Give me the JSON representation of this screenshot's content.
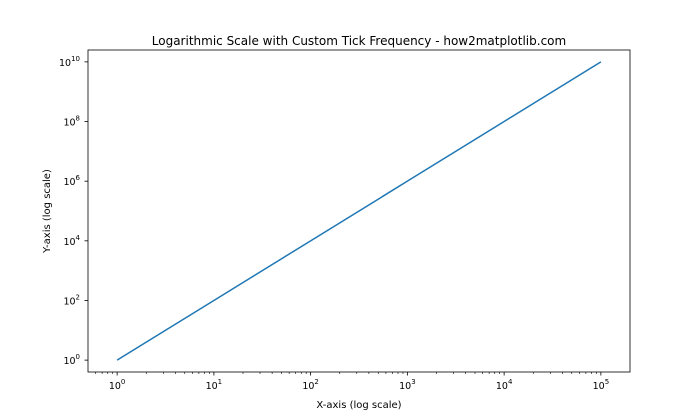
{
  "chart_data": {
    "type": "line",
    "title": "Logarithmic Scale with Custom Tick Frequency - how2matplotlib.com",
    "xlabel": "X-axis (log scale)",
    "ylabel": "Y-axis (log scale)",
    "xscale": "log",
    "yscale": "log",
    "xlim": [
      0.5,
      200000
    ],
    "ylim": [
      0.4,
      25000000000
    ],
    "grid": false,
    "legend": "none",
    "x_ticks": [
      {
        "value": 1,
        "base": "10",
        "exp": "0"
      },
      {
        "value": 10,
        "base": "10",
        "exp": "1"
      },
      {
        "value": 100,
        "base": "10",
        "exp": "2"
      },
      {
        "value": 1000,
        "base": "10",
        "exp": "3"
      },
      {
        "value": 10000,
        "base": "10",
        "exp": "4"
      },
      {
        "value": 100000,
        "base": "10",
        "exp": "5"
      }
    ],
    "y_ticks": [
      {
        "value": 1,
        "base": "10",
        "exp": "0"
      },
      {
        "value": 100,
        "base": "10",
        "exp": "2"
      },
      {
        "value": 10000,
        "base": "10",
        "exp": "4"
      },
      {
        "value": 1000000,
        "base": "10",
        "exp": "6"
      },
      {
        "value": 100000000,
        "base": "10",
        "exp": "8"
      },
      {
        "value": 10000000000,
        "base": "10",
        "exp": "10"
      }
    ],
    "series": [
      {
        "color": "#1f77b4",
        "x": [
          1,
          10,
          100,
          1000,
          10000,
          100000
        ],
        "y": [
          1,
          100,
          10000,
          1000000,
          100000000,
          10000000000
        ]
      }
    ]
  }
}
